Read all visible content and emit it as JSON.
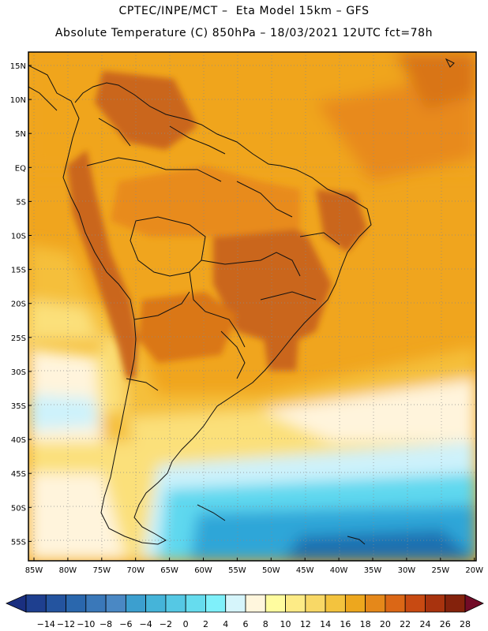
{
  "header": {
    "line1": "CPTEC/INPE/MCT –  Eta Model 15km – GFS",
    "line2": "Absolute Temperature (C) 850hPa – 18/03/2021 12UTC fct=78h"
  },
  "map": {
    "lat_labels": [
      "15N",
      "10N",
      "5N",
      "EQ",
      "5S",
      "10S",
      "15S",
      "20S",
      "25S",
      "30S",
      "35S",
      "40S",
      "45S",
      "50S",
      "55S"
    ],
    "lon_labels": [
      "85W",
      "80W",
      "75W",
      "70W",
      "65W",
      "60W",
      "55W",
      "50W",
      "45W",
      "40W",
      "35W",
      "30W",
      "25W",
      "20W"
    ],
    "colors": {
      "warmest": "#c9641c",
      "warm": "#e88a1c",
      "mid": "#f0a51e",
      "mild": "#f5bf3a",
      "cool": "#fbe07a",
      "cream": "#fff4dc",
      "cyan_light": "#cdf2fb",
      "cyan": "#5fd8ef",
      "blue": "#2fa6d8",
      "dark": "#1f6fb0"
    }
  },
  "colorbar": {
    "labels": [
      "-14",
      "-12",
      "-10",
      "-8",
      "-6",
      "-4",
      "-2",
      "0",
      "2",
      "4",
      "6",
      "8",
      "10",
      "12",
      "14",
      "16",
      "18",
      "20",
      "22",
      "24",
      "26",
      "28"
    ],
    "colors": [
      "#1e3f8f",
      "#24549f",
      "#2a67ad",
      "#3a78b9",
      "#4a88c4",
      "#3c9fcf",
      "#45b4d9",
      "#55c8e4",
      "#66dcee",
      "#7ff0fa",
      "#d6f5fb",
      "#fff6dd",
      "#fffc9f",
      "#fdeb86",
      "#f8d866",
      "#f3c33e",
      "#eda71e",
      "#e5881a",
      "#db6716",
      "#c84a12",
      "#a8330e",
      "#84220c"
    ],
    "left_arrow_color": "#1a2f80",
    "right_arrow_color": "#720c27"
  }
}
